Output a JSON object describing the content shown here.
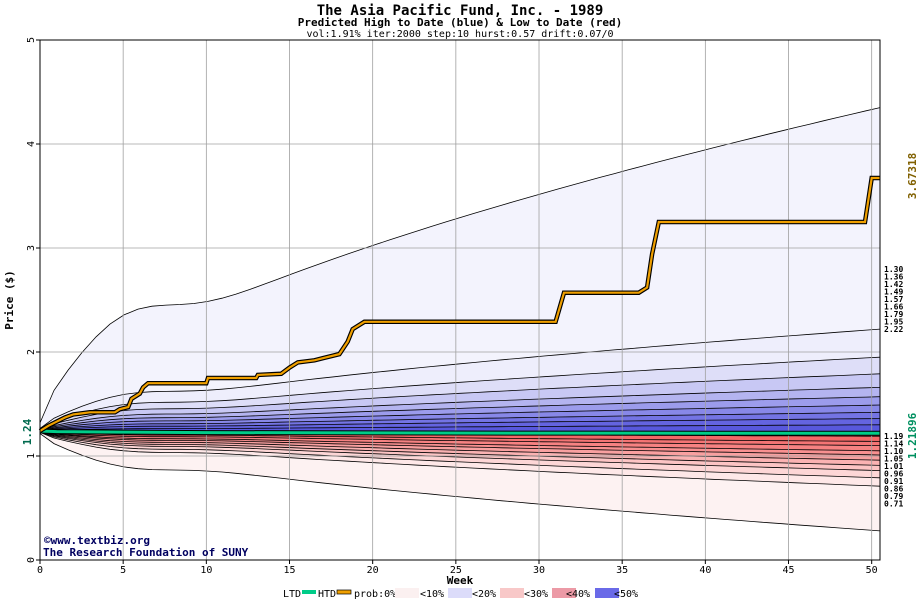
{
  "chart_data": {
    "type": "area",
    "title": "The Asia Pacific Fund, Inc. - 1989",
    "subtitle": "Predicted High to Date (blue) &  Low to Date (red)",
    "params": "vol:1.91% iter:2000 step:10 hurst:0.57 drift:0.07/0",
    "xlabel": "Week",
    "ylabel": "Price ($)",
    "xlim": [
      0,
      50.5
    ],
    "ylim": [
      0,
      5
    ],
    "xticks": [
      0,
      5,
      10,
      15,
      20,
      25,
      30,
      35,
      40,
      45,
      50
    ],
    "yticks": [
      0,
      1,
      2,
      3,
      4,
      5
    ],
    "start_value": 1.24,
    "start_label": "1.24",
    "htd_final": 3.67318,
    "htd_final_label": "3.67318",
    "ltd_final": 1.21896,
    "ltd_final_label": "1.21896",
    "high_bands": [
      {
        "end": 2.22,
        "label": "2.22",
        "color": "#eeeefc"
      },
      {
        "end": 1.95,
        "label": "1.95",
        "color": "#dedef8"
      },
      {
        "end": 1.79,
        "label": "1.79",
        "color": "#c8c8f4"
      },
      {
        "end": 1.66,
        "label": "1.66",
        "color": "#b4b4f0"
      },
      {
        "end": 1.57,
        "label": "1.57",
        "color": "#9c9cec"
      },
      {
        "end": 1.49,
        "label": "1.49",
        "color": "#8888e8"
      },
      {
        "end": 1.42,
        "label": "1.42",
        "color": "#7474e4"
      },
      {
        "end": 1.36,
        "label": "1.36",
        "color": "#6464e0"
      },
      {
        "end": 1.3,
        "label": "1.30",
        "color": "#5858dc"
      }
    ],
    "low_bands": [
      {
        "end": 1.19,
        "label": "1.19",
        "color": "#f05a5a"
      },
      {
        "end": 1.14,
        "label": "1.14",
        "color": "#f26868"
      },
      {
        "end": 1.1,
        "label": "1.10",
        "color": "#f47474"
      },
      {
        "end": 1.05,
        "label": "1.05",
        "color": "#f68282"
      },
      {
        "end": 1.01,
        "label": "1.01",
        "color": "#f89090"
      },
      {
        "end": 0.96,
        "label": "0.96",
        "color": "#f9a0a0"
      },
      {
        "end": 0.91,
        "label": "0.91",
        "color": "#fab2b2"
      },
      {
        "end": 0.86,
        "label": "0.86",
        "color": "#fcc4c4"
      },
      {
        "end": 0.79,
        "label": "0.79",
        "color": "#fdd6d6"
      },
      {
        "end": 0.71,
        "label": "0.71",
        "color": "#fee8e8"
      }
    ],
    "outer_high": {
      "end": 4.35,
      "color": "#f3f3fd"
    },
    "outer_low": {
      "end": 0.28,
      "color": "#fdf2f2"
    },
    "htd_series": [
      [
        0,
        1.24
      ],
      [
        0.5,
        1.29
      ],
      [
        1,
        1.33
      ],
      [
        1.5,
        1.37
      ],
      [
        2,
        1.4
      ],
      [
        2.5,
        1.41
      ],
      [
        3,
        1.42
      ],
      [
        4.5,
        1.42
      ],
      [
        4.8,
        1.45
      ],
      [
        5.3,
        1.47
      ],
      [
        5.5,
        1.55
      ],
      [
        6,
        1.6
      ],
      [
        6.2,
        1.66
      ],
      [
        6.5,
        1.7
      ],
      [
        10,
        1.7
      ],
      [
        10.1,
        1.75
      ],
      [
        13,
        1.75
      ],
      [
        13.1,
        1.78
      ],
      [
        14.5,
        1.79
      ],
      [
        15,
        1.85
      ],
      [
        15.5,
        1.9
      ],
      [
        16.5,
        1.92
      ],
      [
        17,
        1.94
      ],
      [
        18,
        1.98
      ],
      [
        18.5,
        2.1
      ],
      [
        18.8,
        2.22
      ],
      [
        19.5,
        2.29
      ],
      [
        31,
        2.29
      ],
      [
        31.5,
        2.57
      ],
      [
        36,
        2.57
      ],
      [
        36.5,
        2.62
      ],
      [
        36.8,
        2.94
      ],
      [
        37.2,
        3.25
      ],
      [
        49.6,
        3.25
      ],
      [
        50,
        3.67318
      ],
      [
        50.5,
        3.67318
      ]
    ],
    "ltd_series": [
      [
        0,
        1.24
      ],
      [
        1,
        1.235
      ],
      [
        5,
        1.23
      ],
      [
        10,
        1.225
      ],
      [
        20,
        1.222
      ],
      [
        30,
        1.22
      ],
      [
        40,
        1.219
      ],
      [
        50.5,
        1.21896
      ]
    ]
  },
  "legend": {
    "ltd": "LTD",
    "htd": "HTD",
    "prob": "prob:0%",
    "items": [
      "<10%",
      "<20%",
      "<30%",
      "<40%",
      "<50%"
    ],
    "colors": [
      "#fbf0f0",
      "#dcdcfa",
      "#f8c8c8",
      "#ec9aa6",
      "#6a6ae8"
    ],
    "ltd_color": "#00cc88",
    "htd_color": "#f0a000"
  },
  "credits": {
    "line1": "©www.textbiz.org",
    "line2": "The Research Foundation of SUNY"
  }
}
